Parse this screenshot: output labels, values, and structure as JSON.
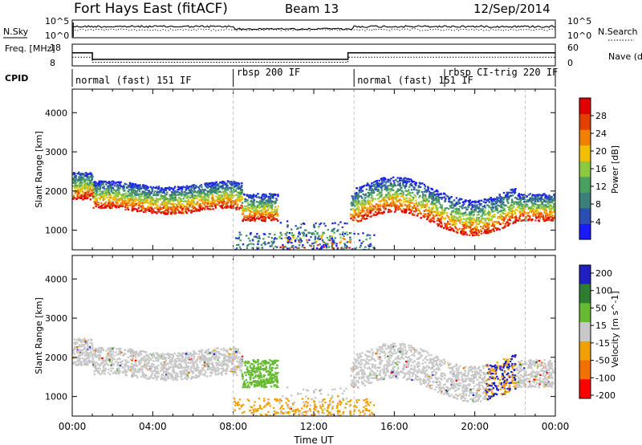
{
  "header": {
    "station": "Fort Hays East (fitACF)",
    "beam": "Beam 13",
    "date": "12/Sep/2014"
  },
  "colors": {
    "power": [
      "#1a1aff",
      "#2a4fb0",
      "#3a7f7a",
      "#4aa060",
      "#8cc840",
      "#f0c000",
      "#f08000",
      "#e04000",
      "#e00000"
    ],
    "velocity": [
      "#2020c0",
      "#2e7d32",
      "#66bb33",
      "#c8c8c8",
      "#f0a000",
      "#f07000",
      "#ff0000"
    ],
    "ground": "#aaaaaa"
  },
  "chart_data": [
    {
      "type": "line",
      "title": "",
      "ylabel": "N.Sky",
      "ylabel_right": "N.Search",
      "yticks_left": [
        "10^5",
        "10^0"
      ],
      "yticks_right": [
        "10^5",
        "10^0"
      ],
      "legend_right": "N.Search (dotted)"
    },
    {
      "type": "line",
      "ylabel": "Freq. [MHz]",
      "yticks_left": [
        "18",
        "8"
      ],
      "yticks_right": [
        "60",
        "0"
      ],
      "legend_right": "Nave (dotted)",
      "series": [
        {
          "name": "Freq.",
          "x": [
            0,
            1.0,
            1.0,
            13.7,
            13.7,
            24
          ],
          "values": [
            14,
            14,
            11,
            11,
            14,
            14
          ]
        },
        {
          "name": "Nave",
          "x": [
            0,
            1.0,
            1.0,
            13.7,
            13.7,
            24
          ],
          "values": [
            24,
            24,
            10,
            10,
            24,
            24
          ]
        }
      ]
    },
    {
      "type": "table",
      "label": "CPID",
      "segments": [
        {
          "start": 0,
          "end": 8.0,
          "text": "normal (fast) 151 IF"
        },
        {
          "start": 8.0,
          "end": 14.0,
          "text": "rbsp 200 IF"
        },
        {
          "start": 14.0,
          "end": 18.5,
          "text": "normal (fast) 151 IF"
        },
        {
          "start": 18.5,
          "end": 22.5,
          "text": "rbsp CI-trig 220 IF"
        }
      ]
    },
    {
      "type": "heatmap",
      "xlabel": "",
      "ylabel": "Slant Range [km]",
      "xlim": [
        0,
        24
      ],
      "ylim": [
        500,
        4600
      ],
      "yticks": [
        1000,
        2000,
        3000,
        4000
      ],
      "colorbar_label": "Power [dB]",
      "colorbar_ticks": [
        4,
        8,
        12,
        16,
        20,
        24,
        28
      ]
    },
    {
      "type": "heatmap",
      "xlabel": "Time UT",
      "ylabel": "Slant Range [km]",
      "xlim": [
        0,
        24
      ],
      "ylim": [
        500,
        4600
      ],
      "yticks": [
        1000,
        2000,
        3000,
        4000
      ],
      "xticks": [
        "00:00",
        "04:00",
        "08:00",
        "12:00",
        "16:00",
        "20:00",
        "00:00"
      ],
      "colorbar_label": "Velocity [m s^-1]",
      "colorbar_ticks": [
        "200",
        "100",
        "50",
        "15",
        "-15",
        "-50",
        "-100",
        "-200"
      ]
    }
  ]
}
